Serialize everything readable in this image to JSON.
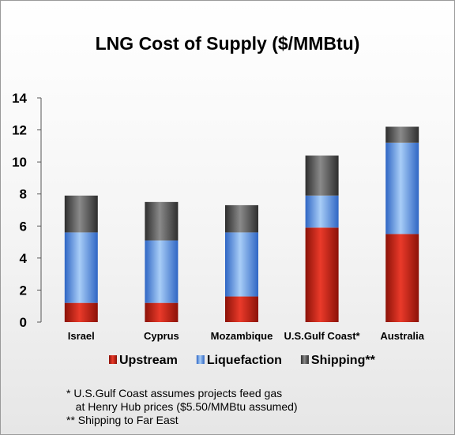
{
  "chart_data": {
    "type": "bar",
    "stacked": true,
    "title": "LNG Cost of Supply ($/MMBtu)",
    "xlabel": "",
    "ylabel": "",
    "ylim": [
      0,
      14
    ],
    "yticks": [
      0,
      2,
      4,
      6,
      8,
      10,
      12,
      14
    ],
    "categories": [
      "Israel",
      "Cyprus",
      "Mozambique",
      "U.S.Gulf Coast*",
      "Australia"
    ],
    "series": [
      {
        "name": "Upstream",
        "color": "#d42a1e",
        "values": [
          1.2,
          1.2,
          1.6,
          5.9,
          5.5
        ]
      },
      {
        "name": "Liquefaction",
        "color": "#5b9be6",
        "values": [
          4.4,
          3.9,
          4.0,
          2.0,
          5.7
        ]
      },
      {
        "name": "Shipping",
        "legend_label": "Shipping**",
        "color": "#555555",
        "values": [
          2.3,
          2.4,
          1.7,
          2.5,
          1.0
        ]
      }
    ],
    "legend_position": "bottom"
  },
  "notes": [
    "* U.S.Gulf Coast assumes projects feed gas",
    "   at Henry Hub prices ($5.50/MMBtu assumed)",
    "** Shipping to Far East"
  ]
}
